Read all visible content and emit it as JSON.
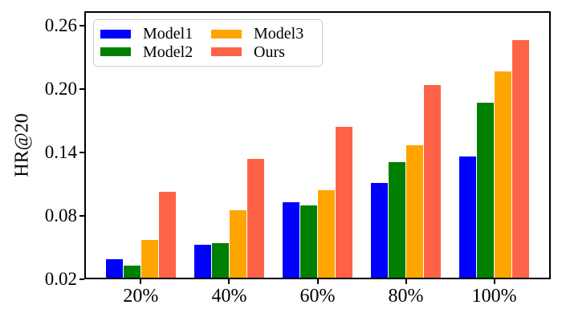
{
  "figure": {
    "background": "#ffffff",
    "axis_color": "#000000"
  },
  "chart_data": {
    "type": "bar",
    "title": "",
    "xlabel": "",
    "ylabel": "HR@20",
    "categories": [
      "20%",
      "40%",
      "60%",
      "80%",
      "100%"
    ],
    "series": [
      {
        "name": "Model1",
        "color": "#0000ff",
        "values": [
          0.039,
          0.053,
          0.093,
          0.111,
          0.136
        ]
      },
      {
        "name": "Model2",
        "color": "#008000",
        "values": [
          0.033,
          0.054,
          0.09,
          0.131,
          0.187
        ]
      },
      {
        "name": "Model3",
        "color": "#ffa500",
        "values": [
          0.057,
          0.085,
          0.104,
          0.147,
          0.217
        ]
      },
      {
        "name": "Ours",
        "color": "#ff6347",
        "values": [
          0.103,
          0.134,
          0.164,
          0.204,
          0.246
        ]
      }
    ],
    "yticks": [
      0.02,
      0.08,
      0.14,
      0.2,
      0.26
    ],
    "ytick_labels": [
      "0.02",
      "0.08",
      "0.14",
      "0.20",
      "0.26"
    ],
    "ylim": [
      0.02,
      0.2737
    ],
    "grid": false,
    "legend": {
      "position": "upper-left",
      "entries": [
        "Model1",
        "Model2",
        "Model3",
        "Ours"
      ]
    }
  }
}
